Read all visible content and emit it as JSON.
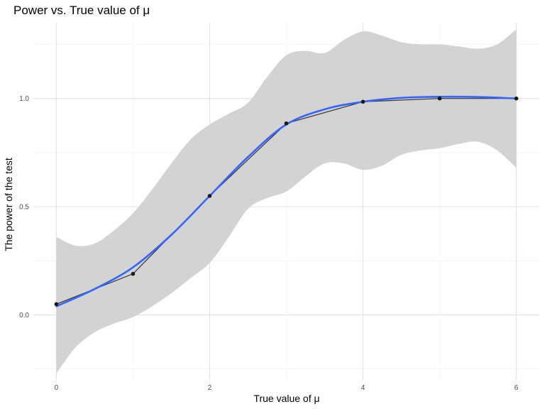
{
  "chart_data": {
    "type": "line",
    "title": "Power vs. True value of μ",
    "xlabel": "True value of μ",
    "ylabel": "The power of the test",
    "xlim": [
      -0.3,
      6.3
    ],
    "ylim": [
      -0.3,
      1.35
    ],
    "x_ticks": [
      0,
      2,
      4,
      6
    ],
    "x_tick_labels": [
      "0",
      "2",
      "4",
      "6"
    ],
    "y_ticks": [
      0.0,
      0.5,
      1.0
    ],
    "y_tick_labels": [
      "0.0",
      "0.5",
      "1.0"
    ],
    "grid": true,
    "legend": "none",
    "series": [
      {
        "kind": "line+points",
        "color": "#333333",
        "x": [
          0,
          1,
          2,
          3,
          4,
          5,
          6
        ],
        "y": [
          0.05,
          0.19,
          0.55,
          0.885,
          0.985,
          1.0,
          1.0
        ]
      },
      {
        "kind": "smooth",
        "color": "#3366ff",
        "x": [
          0,
          0.5,
          1,
          1.5,
          2,
          2.5,
          3,
          3.5,
          4,
          4.5,
          5,
          5.5,
          6
        ],
        "y": [
          0.04,
          0.12,
          0.22,
          0.37,
          0.55,
          0.73,
          0.88,
          0.95,
          0.985,
          1.003,
          1.008,
          1.007,
          1.0
        ]
      }
    ],
    "confidence_band": {
      "color": "#d3d3d3",
      "x": [
        0,
        0.25,
        0.5,
        0.75,
        1,
        1.25,
        1.5,
        1.75,
        2,
        2.25,
        2.5,
        2.75,
        3,
        3.25,
        3.5,
        3.75,
        4,
        4.25,
        4.5,
        4.75,
        5,
        5.25,
        5.5,
        5.75,
        6
      ],
      "upper": [
        0.36,
        0.32,
        0.33,
        0.39,
        0.47,
        0.58,
        0.7,
        0.81,
        0.88,
        0.93,
        0.98,
        1.1,
        1.2,
        1.22,
        1.21,
        1.27,
        1.31,
        1.29,
        1.26,
        1.25,
        1.25,
        1.24,
        1.23,
        1.25,
        1.32
      ],
      "lower": [
        -0.27,
        -0.15,
        -0.08,
        -0.04,
        -0.01,
        0.04,
        0.1,
        0.17,
        0.24,
        0.36,
        0.49,
        0.54,
        0.57,
        0.64,
        0.7,
        0.7,
        0.67,
        0.69,
        0.74,
        0.76,
        0.77,
        0.79,
        0.8,
        0.76,
        0.68
      ]
    }
  }
}
